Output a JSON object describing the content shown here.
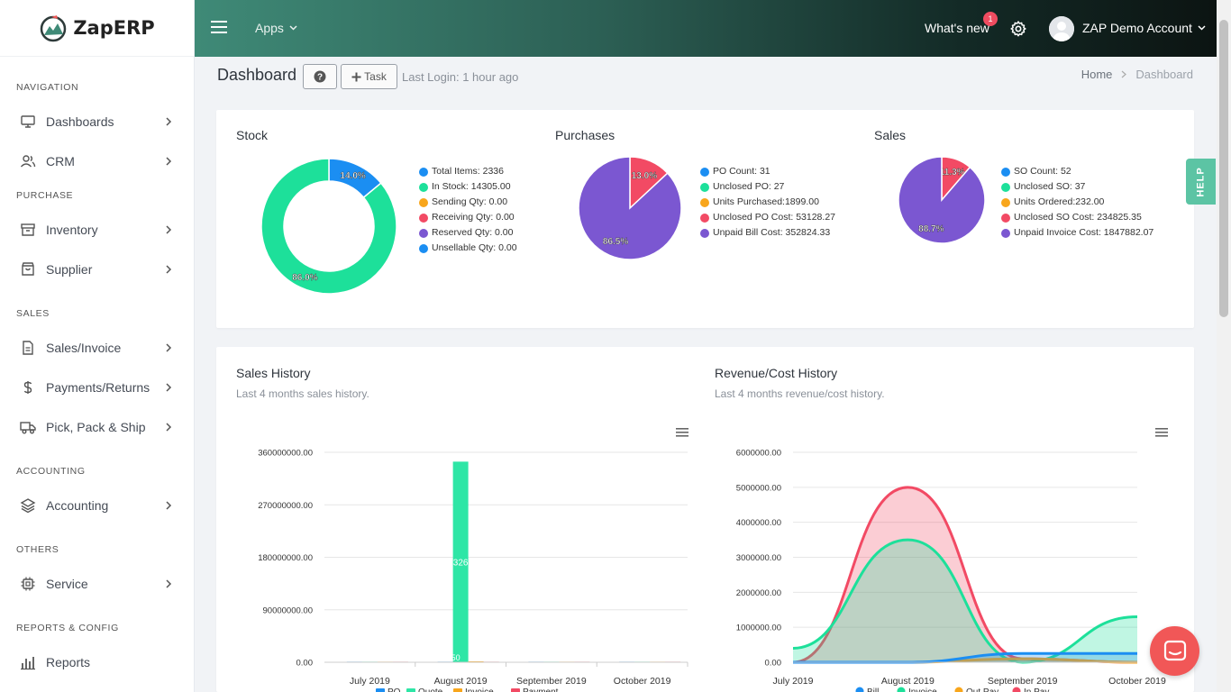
{
  "app": {
    "name": "ZapERP"
  },
  "sidebar": {
    "sections": [
      {
        "title": "NAVIGATION",
        "items": [
          {
            "label": "Dashboards",
            "icon": "monitor-icon"
          },
          {
            "label": "CRM",
            "icon": "users-icon"
          }
        ]
      },
      {
        "title": "PURCHASE",
        "items": [
          {
            "label": "Inventory",
            "icon": "archive-icon"
          },
          {
            "label": "Supplier",
            "icon": "bag-icon"
          }
        ]
      },
      {
        "title": "SALES",
        "items": [
          {
            "label": "Sales/Invoice",
            "icon": "file-icon"
          },
          {
            "label": "Payments/Returns",
            "icon": "dollar-icon"
          },
          {
            "label": "Pick, Pack & Ship",
            "icon": "truck-icon"
          }
        ]
      },
      {
        "title": "ACCOUNTING",
        "items": [
          {
            "label": "Accounting",
            "icon": "layers-icon"
          }
        ]
      },
      {
        "title": "OTHERS",
        "items": [
          {
            "label": "Service",
            "icon": "cpu-icon"
          }
        ]
      },
      {
        "title": "REPORTS & CONFIG",
        "items": [
          {
            "label": "Reports",
            "icon": "bar-chart-icon"
          }
        ]
      }
    ]
  },
  "header": {
    "apps_label": "Apps",
    "whats_new": "What's new",
    "badge_count": "1",
    "account": "ZAP Demo Account"
  },
  "page": {
    "title": "Dashboard",
    "task_label": "Task",
    "last_login": "Last Login: 1 hour ago",
    "breadcrumb": {
      "home": "Home",
      "current": "Dashboard"
    }
  },
  "help_tab": "HELP",
  "colors": {
    "blue": "#1b8ef2",
    "green": "#1de09a",
    "orange": "#f8a61c",
    "red": "#f24a64",
    "purple": "#7b57d1",
    "accent": "#3f8a77"
  },
  "stock": {
    "title": "Stock",
    "legend": [
      "Total Items: 2336",
      "In Stock: 14305.00",
      "Sending Qty: 0.00",
      "Receiving Qty: 0.00",
      "Reserved Qty: 0.00",
      "Unsellable Qty: 0.00"
    ],
    "legend_colors": [
      "#1b8ef2",
      "#1de09a",
      "#f8a61c",
      "#f24a64",
      "#7b57d1",
      "#1b8ef2"
    ]
  },
  "purchases": {
    "title": "Purchases",
    "legend": [
      "PO Count: 31",
      "Unclosed PO: 27",
      "Units Purchased:1899.00",
      "Unclosed PO Cost: 53128.27",
      "Unpaid Bill Cost: 352824.33"
    ],
    "legend_colors": [
      "#1b8ef2",
      "#1de09a",
      "#f8a61c",
      "#f24a64",
      "#7b57d1"
    ]
  },
  "sales": {
    "title": "Sales",
    "legend": [
      "SO Count: 52",
      "Unclosed SO: 37",
      "Units Ordered:232.00",
      "Unclosed SO Cost: 234825.35",
      "Unpaid Invoice Cost: 1847882.07"
    ],
    "legend_colors": [
      "#1b8ef2",
      "#1de09a",
      "#f8a61c",
      "#f24a64",
      "#7b57d1"
    ]
  },
  "sales_history": {
    "title": "Sales History",
    "subtitle": "Last 4 months sales history."
  },
  "revenue_history": {
    "title": "Revenue/Cost History",
    "subtitle": "Last 4 months revenue/cost history."
  },
  "chart_data": [
    {
      "type": "pie",
      "variant": "donut",
      "slices": [
        {
          "value": 14.0,
          "label": "14.0%",
          "color": "#1b8ef2"
        },
        {
          "value": 86.0,
          "label": "86.0%",
          "color": "#1de09a"
        }
      ]
    },
    {
      "type": "pie",
      "slices": [
        {
          "value": 13.0,
          "label": "13.0%",
          "color": "#f24a64"
        },
        {
          "value": 86.5,
          "label": "86.5%",
          "color": "#7b57d1"
        }
      ]
    },
    {
      "type": "pie",
      "slices": [
        {
          "value": 11.3,
          "label": "11.3%",
          "color": "#f24a64"
        },
        {
          "value": 88.7,
          "label": "88.7%",
          "color": "#7b57d1"
        }
      ]
    },
    {
      "type": "bar",
      "categories": [
        "July 2019",
        "August 2019",
        "September 2019",
        "October 2019"
      ],
      "y_ticks": [
        "360000000.00",
        "270000000.00",
        "180000000.00",
        "90000000.00",
        "0.00"
      ],
      "ylim": [
        0,
        360000000
      ],
      "grid": true,
      "legend_position": "bottom",
      "series": [
        {
          "name": "PO",
          "color": "#1b8ef2",
          "values": [
            0,
            0,
            0,
            0
          ]
        },
        {
          "name": "Quote",
          "color": "#2ee6a6",
          "values": [
            0,
            344000000,
            0,
            0
          ],
          "data_labels": [
            "",
            "326",
            "",
            ""
          ]
        },
        {
          "name": "Invoice",
          "color": "#f8a61c",
          "values": [
            0,
            1500000,
            0,
            0
          ]
        },
        {
          "name": "Payment",
          "color": "#f24a64",
          "values": [
            0,
            0,
            0,
            0
          ]
        }
      ],
      "annotations": [
        "850"
      ]
    },
    {
      "type": "area",
      "categories": [
        "July 2019",
        "August 2019",
        "September 2019",
        "October 2019"
      ],
      "y_ticks": [
        "6000000.00",
        "5000000.00",
        "4000000.00",
        "3000000.00",
        "2000000.00",
        "1000000.00",
        "0.00"
      ],
      "ylim": [
        0,
        6000000
      ],
      "grid": true,
      "legend_position": "bottom",
      "series": [
        {
          "name": "Bill",
          "color": "#1b8ef2",
          "values": [
            0,
            0,
            250000,
            250000
          ]
        },
        {
          "name": "Invoice",
          "color": "#1de09a",
          "values": [
            400000,
            3500000,
            0,
            1300000
          ]
        },
        {
          "name": "Out Pay",
          "color": "#f8a61c",
          "values": [
            0,
            0,
            100000,
            0
          ]
        },
        {
          "name": "In Pay",
          "color": "#f24a64",
          "values": [
            0,
            5000000,
            100000,
            0
          ]
        }
      ]
    }
  ]
}
